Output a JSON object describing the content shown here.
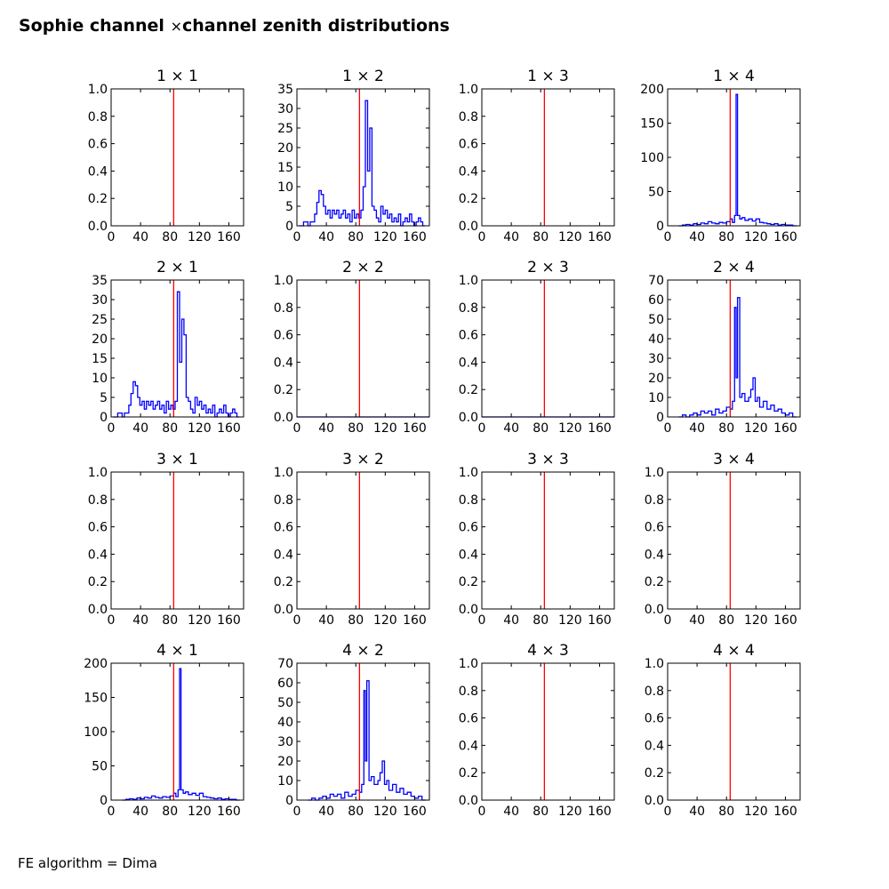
{
  "figure": {
    "title_left": "Sophie channel",
    "title_times": "×",
    "title_right": "channel zenith distributions",
    "footer": "FE algorithm = Dima"
  },
  "colors": {
    "histogram": "#0000ff",
    "reference_line": "#ff0000",
    "axes": "#000000"
  },
  "chart_data": [
    {
      "type": "line",
      "title": "1 × 1",
      "xlim": [
        0,
        180
      ],
      "ylim": [
        0,
        1.0
      ],
      "xticks": [
        0,
        40,
        80,
        120,
        160
      ],
      "yticks": [
        0.0,
        0.2,
        0.4,
        0.6,
        0.8,
        1.0
      ],
      "ytick_decimals": 1,
      "vline_x": 85,
      "grid": false,
      "series": [
        {
          "x": [],
          "y": []
        }
      ]
    },
    {
      "type": "line",
      "title": "1 × 2",
      "xlim": [
        0,
        180
      ],
      "ylim": [
        0,
        35
      ],
      "xticks": [
        0,
        40,
        80,
        120,
        160
      ],
      "yticks": [
        0,
        5,
        10,
        15,
        20,
        25,
        30,
        35
      ],
      "ytick_decimals": 0,
      "vline_x": 85,
      "grid": false,
      "series": [
        {
          "x": [
            3,
            6,
            9,
            12,
            15,
            18,
            21,
            24,
            27,
            30,
            33,
            36,
            39,
            42,
            45,
            48,
            51,
            54,
            57,
            60,
            63,
            66,
            69,
            72,
            75,
            78,
            81,
            84,
            87,
            90,
            93,
            96,
            99,
            102,
            105,
            108,
            111,
            114,
            117,
            120,
            123,
            126,
            129,
            132,
            135,
            138,
            141,
            144,
            147,
            150,
            153,
            156,
            159,
            162,
            165,
            168,
            171,
            174
          ],
          "y": [
            0,
            0,
            1,
            1,
            0,
            1,
            1,
            3,
            6,
            9,
            8,
            5,
            3,
            4,
            2,
            4,
            3,
            4,
            2,
            3,
            4,
            2,
            3,
            1,
            4,
            2,
            3,
            2,
            4,
            10,
            32,
            14,
            25,
            5,
            4,
            2,
            1,
            5,
            3,
            4,
            2,
            3,
            1,
            2,
            1,
            3,
            0,
            1,
            2,
            1,
            3,
            1,
            0,
            1,
            2,
            1,
            0,
            0
          ]
        }
      ]
    },
    {
      "type": "line",
      "title": "1 × 3",
      "xlim": [
        0,
        180
      ],
      "ylim": [
        0,
        1.0
      ],
      "xticks": [
        0,
        40,
        80,
        120,
        160
      ],
      "yticks": [
        0.0,
        0.2,
        0.4,
        0.6,
        0.8,
        1.0
      ],
      "ytick_decimals": 1,
      "vline_x": 85,
      "grid": false,
      "series": [
        {
          "x": [],
          "y": []
        }
      ]
    },
    {
      "type": "line",
      "title": "1 × 4",
      "xlim": [
        0,
        180
      ],
      "ylim": [
        0,
        200
      ],
      "xticks": [
        0,
        40,
        80,
        120,
        160
      ],
      "yticks": [
        0,
        50,
        100,
        150,
        200
      ],
      "ytick_decimals": 0,
      "vline_x": 85,
      "grid": false,
      "series": [
        {
          "x": [
            15,
            20,
            25,
            30,
            35,
            40,
            45,
            50,
            55,
            60,
            65,
            70,
            75,
            80,
            85,
            88,
            91,
            93,
            95,
            98,
            101,
            105,
            110,
            115,
            120,
            125,
            130,
            135,
            140,
            145,
            150,
            155,
            160,
            165,
            170,
            175
          ],
          "y": [
            0,
            1,
            2,
            1,
            3,
            2,
            4,
            3,
            6,
            4,
            3,
            5,
            4,
            6,
            10,
            5,
            15,
            192,
            15,
            10,
            12,
            8,
            10,
            7,
            10,
            5,
            4,
            3,
            2,
            3,
            1,
            2,
            1,
            1,
            0,
            0
          ]
        }
      ]
    },
    {
      "type": "line",
      "title": "2 × 1",
      "xlim": [
        0,
        180
      ],
      "ylim": [
        0,
        35
      ],
      "xticks": [
        0,
        40,
        80,
        120,
        160
      ],
      "yticks": [
        0,
        5,
        10,
        15,
        20,
        25,
        30,
        35
      ],
      "ytick_decimals": 0,
      "vline_x": 85,
      "grid": false,
      "series": [
        {
          "x": [
            3,
            6,
            9,
            12,
            15,
            18,
            21,
            24,
            27,
            30,
            33,
            36,
            39,
            42,
            45,
            48,
            51,
            54,
            57,
            60,
            63,
            66,
            69,
            72,
            75,
            78,
            81,
            84,
            87,
            90,
            93,
            96,
            99,
            102,
            105,
            108,
            111,
            114,
            117,
            120,
            123,
            126,
            129,
            132,
            135,
            138,
            141,
            144,
            147,
            150,
            153,
            156,
            159,
            162,
            165,
            168,
            171,
            174
          ],
          "y": [
            0,
            0,
            1,
            1,
            0,
            1,
            1,
            3,
            6,
            9,
            8,
            5,
            3,
            4,
            2,
            4,
            3,
            4,
            2,
            3,
            4,
            2,
            3,
            1,
            4,
            2,
            3,
            2,
            4,
            32,
            14,
            25,
            21,
            5,
            4,
            2,
            1,
            5,
            3,
            4,
            2,
            3,
            1,
            2,
            1,
            3,
            0,
            1,
            2,
            1,
            3,
            1,
            0,
            1,
            2,
            1,
            0,
            0
          ]
        }
      ]
    },
    {
      "type": "line",
      "title": "2 × 2",
      "xlim": [
        0,
        180
      ],
      "ylim": [
        0,
        1.0
      ],
      "xticks": [
        0,
        40,
        80,
        120,
        160
      ],
      "yticks": [
        0.0,
        0.2,
        0.4,
        0.6,
        0.8,
        1.0
      ],
      "ytick_decimals": 1,
      "vline_x": 85,
      "grid": false,
      "series": [
        {
          "x": [
            0,
            180
          ],
          "y": [
            0,
            0
          ]
        }
      ]
    },
    {
      "type": "line",
      "title": "2 × 3",
      "xlim": [
        0,
        180
      ],
      "ylim": [
        0,
        1.0
      ],
      "xticks": [
        0,
        40,
        80,
        120,
        160
      ],
      "yticks": [
        0.0,
        0.2,
        0.4,
        0.6,
        0.8,
        1.0
      ],
      "ytick_decimals": 1,
      "vline_x": 85,
      "grid": false,
      "series": [
        {
          "x": [
            0,
            180
          ],
          "y": [
            0,
            0
          ]
        }
      ]
    },
    {
      "type": "line",
      "title": "2 × 4",
      "xlim": [
        0,
        180
      ],
      "ylim": [
        0,
        70
      ],
      "xticks": [
        0,
        40,
        80,
        120,
        160
      ],
      "yticks": [
        0,
        10,
        20,
        30,
        40,
        50,
        60,
        70
      ],
      "ytick_decimals": 0,
      "vline_x": 85,
      "grid": false,
      "series": [
        {
          "x": [
            15,
            20,
            25,
            30,
            35,
            40,
            45,
            50,
            55,
            60,
            65,
            70,
            75,
            80,
            85,
            88,
            91,
            93,
            95,
            98,
            101,
            105,
            110,
            113,
            116,
            119,
            122,
            125,
            130,
            135,
            140,
            145,
            150,
            155,
            160,
            165,
            170,
            175
          ],
          "y": [
            0,
            1,
            0,
            1,
            2,
            1,
            3,
            2,
            3,
            1,
            4,
            2,
            3,
            5,
            4,
            8,
            56,
            20,
            61,
            10,
            12,
            8,
            10,
            14,
            20,
            8,
            10,
            5,
            8,
            4,
            6,
            3,
            4,
            2,
            1,
            2,
            0,
            0
          ]
        }
      ]
    },
    {
      "type": "line",
      "title": "3 × 1",
      "xlim": [
        0,
        180
      ],
      "ylim": [
        0,
        1.0
      ],
      "xticks": [
        0,
        40,
        80,
        120,
        160
      ],
      "yticks": [
        0.0,
        0.2,
        0.4,
        0.6,
        0.8,
        1.0
      ],
      "ytick_decimals": 1,
      "vline_x": 85,
      "grid": false,
      "series": [
        {
          "x": [],
          "y": []
        }
      ]
    },
    {
      "type": "line",
      "title": "3 × 2",
      "xlim": [
        0,
        180
      ],
      "ylim": [
        0,
        1.0
      ],
      "xticks": [
        0,
        40,
        80,
        120,
        160
      ],
      "yticks": [
        0.0,
        0.2,
        0.4,
        0.6,
        0.8,
        1.0
      ],
      "ytick_decimals": 1,
      "vline_x": 85,
      "grid": false,
      "series": [
        {
          "x": [],
          "y": []
        }
      ]
    },
    {
      "type": "line",
      "title": "3 × 3",
      "xlim": [
        0,
        180
      ],
      "ylim": [
        0,
        1.0
      ],
      "xticks": [
        0,
        40,
        80,
        120,
        160
      ],
      "yticks": [
        0.0,
        0.2,
        0.4,
        0.6,
        0.8,
        1.0
      ],
      "ytick_decimals": 1,
      "vline_x": 85,
      "grid": false,
      "series": [
        {
          "x": [],
          "y": []
        }
      ]
    },
    {
      "type": "line",
      "title": "3 × 4",
      "xlim": [
        0,
        180
      ],
      "ylim": [
        0,
        1.0
      ],
      "xticks": [
        0,
        40,
        80,
        120,
        160
      ],
      "yticks": [
        0.0,
        0.2,
        0.4,
        0.6,
        0.8,
        1.0
      ],
      "ytick_decimals": 1,
      "vline_x": 85,
      "grid": false,
      "series": [
        {
          "x": [],
          "y": []
        }
      ]
    },
    {
      "type": "line",
      "title": "4 × 1",
      "xlim": [
        0,
        180
      ],
      "ylim": [
        0,
        200
      ],
      "xticks": [
        0,
        40,
        80,
        120,
        160
      ],
      "yticks": [
        0,
        50,
        100,
        150,
        200
      ],
      "ytick_decimals": 0,
      "vline_x": 85,
      "grid": false,
      "series": [
        {
          "x": [
            15,
            20,
            25,
            30,
            35,
            40,
            45,
            50,
            55,
            60,
            65,
            70,
            75,
            80,
            85,
            88,
            91,
            93,
            95,
            98,
            101,
            105,
            110,
            115,
            120,
            125,
            130,
            135,
            140,
            145,
            150,
            155,
            160,
            165,
            170,
            175
          ],
          "y": [
            0,
            1,
            2,
            1,
            3,
            2,
            4,
            3,
            6,
            4,
            3,
            5,
            4,
            6,
            10,
            5,
            15,
            192,
            15,
            10,
            12,
            8,
            10,
            7,
            10,
            5,
            4,
            3,
            2,
            3,
            1,
            2,
            1,
            1,
            0,
            0
          ]
        }
      ]
    },
    {
      "type": "line",
      "title": "4 × 2",
      "xlim": [
        0,
        180
      ],
      "ylim": [
        0,
        70
      ],
      "xticks": [
        0,
        40,
        80,
        120,
        160
      ],
      "yticks": [
        0,
        10,
        20,
        30,
        40,
        50,
        60,
        70
      ],
      "ytick_decimals": 0,
      "vline_x": 85,
      "grid": false,
      "series": [
        {
          "x": [
            15,
            20,
            25,
            30,
            35,
            40,
            45,
            50,
            55,
            60,
            65,
            70,
            75,
            80,
            85,
            88,
            91,
            93,
            95,
            98,
            101,
            105,
            110,
            113,
            116,
            119,
            122,
            125,
            130,
            135,
            140,
            145,
            150,
            155,
            160,
            165,
            170,
            175
          ],
          "y": [
            0,
            1,
            0,
            1,
            2,
            1,
            3,
            2,
            3,
            1,
            4,
            2,
            3,
            5,
            4,
            8,
            56,
            20,
            61,
            10,
            12,
            8,
            10,
            14,
            20,
            8,
            10,
            5,
            8,
            4,
            6,
            3,
            4,
            2,
            1,
            2,
            0,
            0
          ]
        }
      ]
    },
    {
      "type": "line",
      "title": "4 × 3",
      "xlim": [
        0,
        180
      ],
      "ylim": [
        0,
        1.0
      ],
      "xticks": [
        0,
        40,
        80,
        120,
        160
      ],
      "yticks": [
        0.0,
        0.2,
        0.4,
        0.6,
        0.8,
        1.0
      ],
      "ytick_decimals": 1,
      "vline_x": 85,
      "grid": false,
      "series": [
        {
          "x": [],
          "y": []
        }
      ]
    },
    {
      "type": "line",
      "title": "4 × 4",
      "xlim": [
        0,
        180
      ],
      "ylim": [
        0,
        1.0
      ],
      "xticks": [
        0,
        40,
        80,
        120,
        160
      ],
      "yticks": [
        0.0,
        0.2,
        0.4,
        0.6,
        0.8,
        1.0
      ],
      "ytick_decimals": 1,
      "vline_x": 85,
      "grid": false,
      "series": [
        {
          "x": [],
          "y": []
        }
      ]
    }
  ]
}
